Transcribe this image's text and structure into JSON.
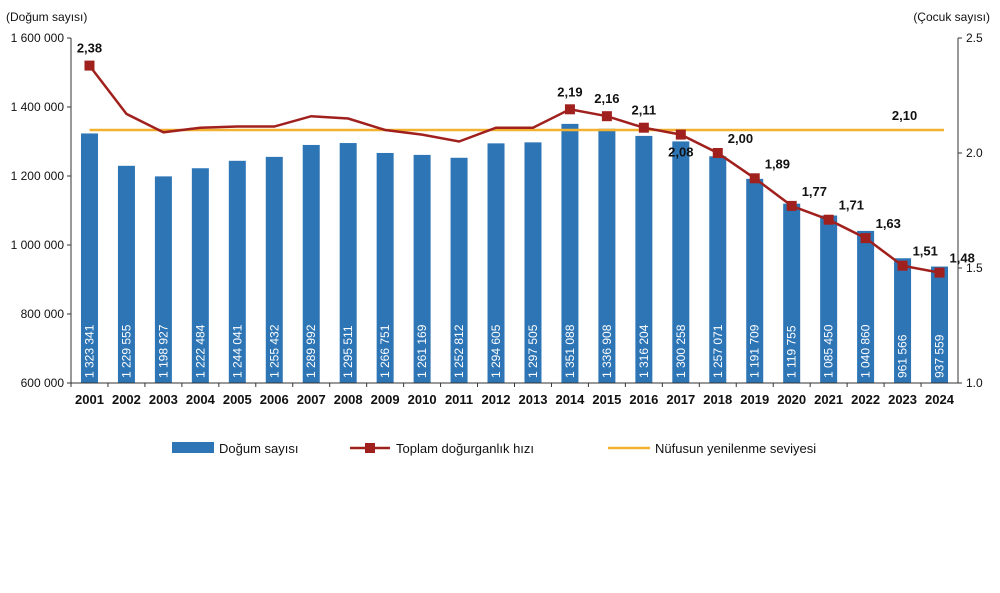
{
  "chart_data": {
    "type": "bar",
    "categories": [
      "2001",
      "2002",
      "2003",
      "2004",
      "2005",
      "2006",
      "2007",
      "2008",
      "2009",
      "2010",
      "2011",
      "2012",
      "2013",
      "2014",
      "2015",
      "2016",
      "2017",
      "2018",
      "2019",
      "2020",
      "2021",
      "2022",
      "2023",
      "2024"
    ],
    "series": [
      {
        "name": "Doğum sayısı",
        "type": "bar",
        "axis": "left",
        "color": "#2E75B6",
        "values": [
          1323341,
          1229555,
          1198927,
          1222484,
          1244041,
          1255432,
          1289992,
          1295511,
          1266751,
          1261169,
          1252812,
          1294605,
          1297505,
          1351088,
          1336908,
          1316204,
          1300258,
          1257071,
          1191709,
          1119755,
          1085450,
          1040860,
          961566,
          937559
        ],
        "labels": [
          "1 323 341",
          "1 229 555",
          "1 198 927",
          "1 222 484",
          "1 244 041",
          "1 255 432",
          "1 289 992",
          "1 295 511",
          "1 266 751",
          "1 261 169",
          "1 252 812",
          "1 294 605",
          "1 297 505",
          "1 351 088",
          "1 336 908",
          "1 316 204",
          "1 300 258",
          "1 257 071",
          "1 191 709",
          "1 119 755",
          "1 085 450",
          "1 040 860",
          "961 566",
          "937 559"
        ]
      },
      {
        "name": "Toplam doğurganlık hızı",
        "type": "line",
        "axis": "right",
        "color": "#A0201E",
        "values": [
          2.38,
          2.17,
          2.09,
          2.11,
          2.115,
          2.115,
          2.16,
          2.15,
          2.1,
          2.08,
          2.05,
          2.11,
          2.11,
          2.19,
          2.16,
          2.11,
          2.08,
          2.0,
          1.89,
          1.77,
          1.71,
          1.63,
          1.51,
          1.48
        ],
        "labels": {
          "0": "2,38",
          "13": "2,19",
          "14": "2,16",
          "15": "2,11",
          "16": "2,08",
          "17": "2,00",
          "18": "1,89",
          "19": "1,77",
          "20": "1,71",
          "21": "1,63",
          "22": "1,51",
          "23": "1,48"
        }
      },
      {
        "name": "Nüfusun yenilenme seviyesi",
        "type": "line",
        "axis": "right",
        "color": "#F2B230",
        "value": 2.1,
        "label": "2,10"
      }
    ],
    "ylabel_left": "(Doğum sayısı)",
    "ylabel_right": "(Çocuk sayısı)",
    "ylim_left": [
      600000,
      1600000
    ],
    "yticks_left": [
      "600 000",
      "800 000",
      "1 000 000",
      "1 200 000",
      "1 400 000",
      "1 600 000"
    ],
    "ylim_right": [
      1.0,
      2.5
    ],
    "yticks_right": [
      "1.0",
      "1.5",
      "2.0",
      "2.5"
    ],
    "grid": false,
    "legend": "bottom"
  }
}
